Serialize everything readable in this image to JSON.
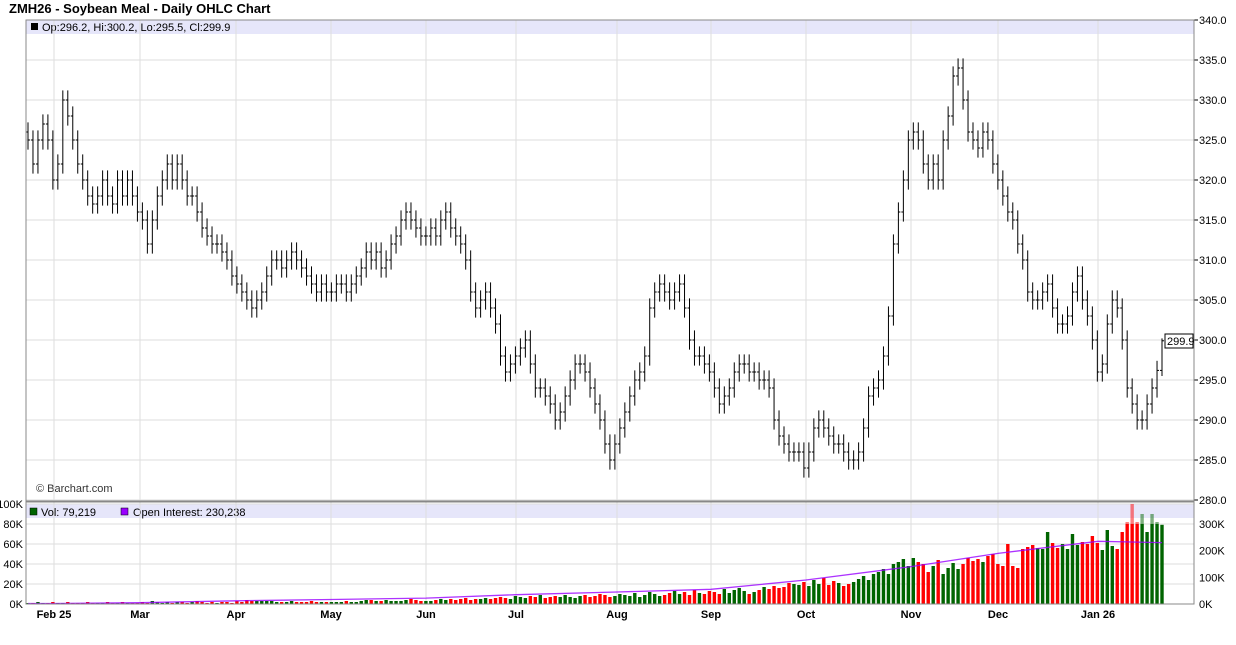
{
  "title": "ZMH26 - Soybean Meal - Daily OHLC Chart",
  "legend": {
    "ohlc": "Op:296.2, Hi:300.2, Lo:295.5, Cl:299.9",
    "volume": "Vol: 79,219",
    "open_interest": "Open Interest: 230,238"
  },
  "watermark": "© Barchart.com",
  "last_price_label": "299.9",
  "colors": {
    "up_volume": "#006400",
    "down_volume": "#ff0000",
    "open_interest": "#9900ff",
    "legend_band": "#e6e6fa",
    "grid": "#dddddd"
  },
  "chart_data": [
    {
      "type": "ohlc",
      "title": "ZMH26 - Soybean Meal - Daily OHLC Chart",
      "ylim": [
        280,
        340
      ],
      "yticks": [
        "340.0",
        "335.0",
        "330.0",
        "325.0",
        "320.0",
        "315.0",
        "310.0",
        "305.0",
        "300.0",
        "295.0",
        "290.0",
        "285.0",
        "280.0"
      ],
      "x_tick_labels": [
        "Feb 25",
        "Mar",
        "Apr",
        "May",
        "Jun",
        "Jul",
        "Aug",
        "Sep",
        "Oct",
        "Nov",
        "Dec",
        "Jan 26"
      ],
      "grid": true,
      "last_bar": {
        "open": 296.2,
        "high": 300.2,
        "low": 295.5,
        "close": 299.9
      },
      "closes": [
        325,
        322,
        325,
        327,
        325,
        320,
        322,
        330,
        328,
        325,
        322,
        320,
        318,
        317,
        318,
        320,
        318,
        317,
        320,
        318,
        320,
        318,
        316,
        315,
        312,
        315,
        318,
        320,
        322,
        320,
        322,
        320,
        318,
        318,
        316,
        314,
        313,
        312,
        312,
        311,
        310,
        308,
        307,
        306,
        305,
        304,
        305,
        306,
        308,
        310,
        310,
        309,
        310,
        311,
        310,
        309,
        308,
        307,
        306,
        307,
        306,
        306,
        307,
        307,
        306,
        307,
        308,
        309,
        311,
        310,
        311,
        309,
        310,
        312,
        313,
        315,
        316,
        315,
        314,
        313,
        313,
        314,
        313,
        315,
        316,
        314,
        313,
        312,
        310,
        306,
        304,
        305,
        306,
        304,
        302,
        298,
        296,
        297,
        298,
        299,
        300,
        297,
        294,
        294,
        293,
        292,
        290,
        291,
        293,
        295,
        297,
        297,
        296,
        294,
        292,
        290,
        287,
        285,
        287,
        289,
        291,
        293,
        295,
        296,
        298,
        304,
        306,
        307,
        306,
        305,
        306,
        307,
        304,
        300,
        298,
        298,
        297,
        296,
        294,
        292,
        293,
        294,
        296,
        297,
        297,
        296,
        296,
        295,
        295,
        294,
        290,
        288,
        287,
        286,
        286,
        286,
        284,
        286,
        289,
        290,
        289,
        288,
        287,
        287,
        286,
        285,
        285,
        286,
        289,
        293,
        294,
        295,
        298,
        303,
        312,
        316,
        320,
        325,
        326,
        325,
        322,
        320,
        322,
        320,
        325,
        328,
        333,
        334,
        330,
        326,
        325,
        324,
        326,
        325,
        322,
        320,
        318,
        316,
        315,
        312,
        310,
        306,
        305,
        305,
        306,
        307,
        304,
        302,
        302,
        303,
        306,
        308,
        305,
        303,
        300,
        296,
        297,
        302,
        305,
        304,
        300,
        294,
        292,
        290,
        290,
        292,
        294,
        296.2,
        299.9
      ]
    },
    {
      "type": "bar",
      "name": "Volume",
      "ylim_left": [
        0,
        100000
      ],
      "yticks_left": [
        "100K",
        "80K",
        "60K",
        "40K",
        "20K",
        "0K"
      ],
      "yticks_right": [
        "300K",
        "200K",
        "100K",
        "0K"
      ],
      "volume_thousands": [
        1,
        1,
        2,
        1,
        1,
        2,
        1,
        1,
        2,
        1,
        1,
        1,
        2,
        1,
        1,
        1,
        2,
        1,
        1,
        2,
        1,
        1,
        1,
        2,
        1,
        3,
        2,
        1,
        2,
        1,
        2,
        2,
        1,
        2,
        3,
        2,
        1,
        2,
        1,
        2,
        2,
        1,
        3,
        2,
        4,
        3,
        3,
        3,
        3,
        3,
        2,
        2,
        2,
        3,
        2,
        2,
        2,
        3,
        2,
        2,
        2,
        2,
        2,
        2,
        3,
        2,
        2,
        3,
        4,
        4,
        3,
        3,
        4,
        3,
        3,
        3,
        4,
        5,
        4,
        3,
        3,
        3,
        4,
        5,
        4,
        5,
        4,
        5,
        6,
        4,
        5,
        5,
        6,
        5,
        6,
        7,
        6,
        5,
        8,
        7,
        6,
        8,
        7,
        9,
        6,
        7,
        8,
        7,
        9,
        7,
        6,
        8,
        9,
        7,
        8,
        10,
        9,
        7,
        8,
        10,
        9,
        8,
        11,
        7,
        9,
        12,
        10,
        8,
        9,
        11,
        13,
        10,
        12,
        9,
        14,
        11,
        10,
        13,
        12,
        10,
        15,
        11,
        14,
        16,
        13,
        10,
        12,
        14,
        17,
        15,
        18,
        16,
        17,
        21,
        20,
        19,
        22,
        18,
        24,
        20,
        26,
        19,
        23,
        21,
        18,
        20,
        22,
        25,
        28,
        24,
        30,
        32,
        35,
        30,
        40,
        42,
        45,
        38,
        46,
        42,
        40,
        32,
        38,
        44,
        30,
        36,
        41,
        35,
        40,
        46,
        43,
        45,
        42,
        48,
        50,
        40,
        38,
        60,
        38,
        36,
        55,
        57,
        59,
        56,
        55,
        72,
        61,
        56,
        60,
        55,
        70,
        59,
        62,
        60,
        68,
        61,
        54,
        74,
        58,
        55,
        72,
        82,
        100,
        82,
        90,
        72,
        90,
        82,
        79.2
      ],
      "open_interest": [
        {
          "date": "Feb 25",
          "value": 2000
        },
        {
          "date": "Mar",
          "value": 5000
        },
        {
          "date": "Apr",
          "value": 12000
        },
        {
          "date": "May",
          "value": 17000
        },
        {
          "date": "Jun",
          "value": 22000
        },
        {
          "date": "Jul",
          "value": 35000
        },
        {
          "date": "Aug",
          "value": 45000
        },
        {
          "date": "Sep",
          "value": 55000
        },
        {
          "date": "Oct",
          "value": 90000
        },
        {
          "date": "Nov",
          "value": 140000
        },
        {
          "date": "Dec",
          "value": 190000
        },
        {
          "date": "Jan 26",
          "value": 235000
        },
        {
          "date": "last",
          "value": 230238
        }
      ]
    }
  ]
}
